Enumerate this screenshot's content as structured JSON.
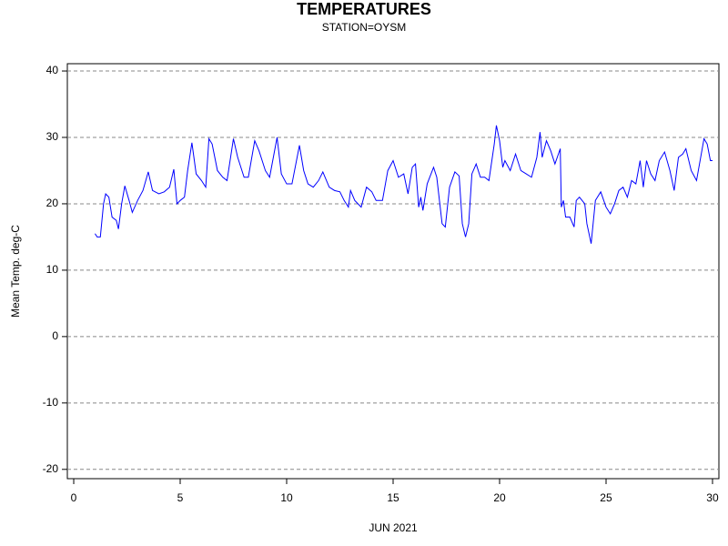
{
  "chart_data": {
    "type": "line",
    "title": "TEMPERATURES",
    "subtitle": "STATION=OYSM",
    "x_label": "JUN 2021",
    "y_label": "Mean Temp. deg-C",
    "xlim": [
      -0.3,
      30.3
    ],
    "xticks": [
      0,
      5,
      10,
      15,
      20,
      25,
      30
    ],
    "ylim": [
      -21.4,
      41.1
    ],
    "yticks": [
      -20,
      -10,
      0,
      10,
      20,
      30,
      40
    ],
    "grid": true,
    "series": [
      {
        "color": "#0000ff",
        "x": [
          1.0,
          1.1,
          1.25,
          1.4,
          1.5,
          1.65,
          1.8,
          2.0,
          2.1,
          2.25,
          2.4,
          2.6,
          2.75,
          3.0,
          3.25,
          3.5,
          3.7,
          4.0,
          4.25,
          4.5,
          4.7,
          4.85,
          5.0,
          5.2,
          5.35,
          5.55,
          5.75,
          6.0,
          6.2,
          6.35,
          6.5,
          6.75,
          7.0,
          7.2,
          7.5,
          7.7,
          8.0,
          8.2,
          8.5,
          8.7,
          9.0,
          9.2,
          9.55,
          9.75,
          10.0,
          10.25,
          10.6,
          10.8,
          11.0,
          11.25,
          11.5,
          11.7,
          12.0,
          12.25,
          12.5,
          12.7,
          12.9,
          13.0,
          13.2,
          13.5,
          13.75,
          14.0,
          14.2,
          14.5,
          14.75,
          15.0,
          15.25,
          15.5,
          15.7,
          15.9,
          16.05,
          16.2,
          16.3,
          16.4,
          16.6,
          16.9,
          17.05,
          17.3,
          17.45,
          17.65,
          17.9,
          18.1,
          18.25,
          18.4,
          18.55,
          18.7,
          18.9,
          19.1,
          19.3,
          19.5,
          19.75,
          19.85,
          20.0,
          20.15,
          20.25,
          20.5,
          20.75,
          21.0,
          21.25,
          21.5,
          21.75,
          21.9,
          22.0,
          22.2,
          22.4,
          22.6,
          22.85,
          22.9,
          23.0,
          23.1,
          23.3,
          23.5,
          23.6,
          23.75,
          24.0,
          24.1,
          24.3,
          24.5,
          24.75,
          25.0,
          25.2,
          25.4,
          25.6,
          25.8,
          26.0,
          26.2,
          26.4,
          26.6,
          26.75,
          26.9,
          27.1,
          27.3,
          27.5,
          27.75,
          28.0,
          28.2,
          28.4,
          28.6,
          28.75,
          29.0,
          29.25,
          29.5,
          29.6,
          29.75,
          29.9,
          30.0
        ],
        "values": [
          15.5,
          15,
          15,
          20,
          21.5,
          21,
          18,
          17.5,
          16.2,
          20,
          22.7,
          20.5,
          18.7,
          20.5,
          22,
          24.8,
          22,
          21.5,
          21.8,
          22.5,
          25.2,
          20,
          20.5,
          21,
          25,
          29.2,
          24.5,
          23.5,
          22.5,
          29.8,
          29,
          25,
          24,
          23.5,
          29.8,
          27,
          24,
          24,
          29.5,
          28,
          25,
          24,
          30,
          24.5,
          23,
          23,
          28.8,
          25,
          23,
          22.5,
          23.5,
          24.8,
          22.5,
          22,
          21.8,
          20.5,
          19.5,
          22,
          20.5,
          19.5,
          22.5,
          21.8,
          20.5,
          20.5,
          25,
          26.5,
          24,
          24.5,
          21.5,
          25.5,
          26,
          19.5,
          21,
          19,
          23,
          25.5,
          24,
          17,
          16.5,
          22.5,
          24.8,
          24.2,
          17,
          15,
          17,
          24.5,
          26,
          24,
          24,
          23.5,
          29,
          31.8,
          29.5,
          25.5,
          26.5,
          25,
          27.5,
          25,
          24.5,
          24,
          27,
          30.8,
          27,
          29.5,
          28,
          26,
          28.3,
          19.5,
          20.5,
          18,
          18,
          16.5,
          20.5,
          21,
          20,
          17,
          14,
          20.5,
          21.8,
          19.5,
          18.5,
          20,
          22,
          22.5,
          21,
          23.5,
          23,
          26.5,
          22.5,
          26.5,
          24.5,
          23.5,
          26.5,
          27.8,
          25,
          22,
          27,
          27.5,
          28.3,
          25,
          23.5,
          28,
          29.8,
          29,
          26.5,
          26.5
        ]
      }
    ]
  }
}
